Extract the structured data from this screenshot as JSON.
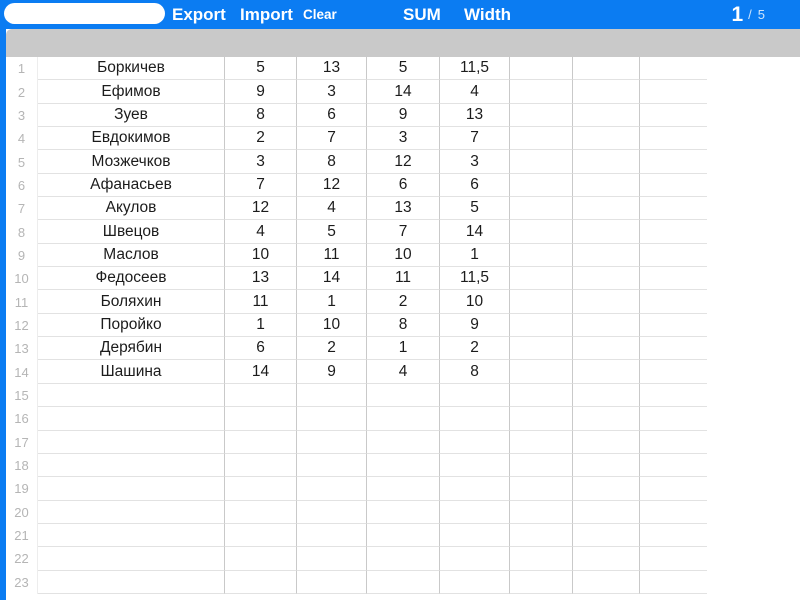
{
  "colors": {
    "accent_blue": "#0b7cf2",
    "header_gray": "#c9c9c9"
  },
  "toolbar": {
    "input_value": "",
    "input_placeholder": "",
    "buttons": [
      {
        "label": "Export"
      },
      {
        "label": "Import"
      },
      {
        "label": "Clear"
      },
      {
        "label": "SUM"
      },
      {
        "label": "Width"
      }
    ]
  },
  "page": {
    "current": "1",
    "separator": "/",
    "total": "5"
  },
  "sheet": {
    "row_count": 23,
    "value_column_count": 7,
    "rows": [
      {
        "num": 1,
        "name": "Боркичев",
        "values": [
          "5",
          "13",
          "5",
          "11,5"
        ]
      },
      {
        "num": 2,
        "name": "Ефимов",
        "values": [
          "9",
          "3",
          "14",
          "4"
        ]
      },
      {
        "num": 3,
        "name": "Зуев",
        "values": [
          "8",
          "6",
          "9",
          "13"
        ]
      },
      {
        "num": 4,
        "name": "Евдокимов",
        "values": [
          "2",
          "7",
          "3",
          "7"
        ]
      },
      {
        "num": 5,
        "name": "Мозжечков",
        "values": [
          "3",
          "8",
          "12",
          "3"
        ]
      },
      {
        "num": 6,
        "name": "Афанасьев",
        "values": [
          "7",
          "12",
          "6",
          "6"
        ]
      },
      {
        "num": 7,
        "name": "Акулов",
        "values": [
          "12",
          "4",
          "13",
          "5"
        ]
      },
      {
        "num": 8,
        "name": "Швецов",
        "values": [
          "4",
          "5",
          "7",
          "14"
        ]
      },
      {
        "num": 9,
        "name": "Маслов",
        "values": [
          "10",
          "11",
          "10",
          "1"
        ]
      },
      {
        "num": 10,
        "name": "Федосеев",
        "values": [
          "13",
          "14",
          "11",
          "11,5"
        ]
      },
      {
        "num": 11,
        "name": "Боляхин",
        "values": [
          "11",
          "1",
          "2",
          "10"
        ]
      },
      {
        "num": 12,
        "name": "Поройко",
        "values": [
          "1",
          "10",
          "8",
          "9"
        ]
      },
      {
        "num": 13,
        "name": "Дерябин",
        "values": [
          "6",
          "2",
          "1",
          "2"
        ]
      },
      {
        "num": 14,
        "name": "Шашина",
        "values": [
          "14",
          "9",
          "4",
          "8"
        ]
      }
    ]
  }
}
